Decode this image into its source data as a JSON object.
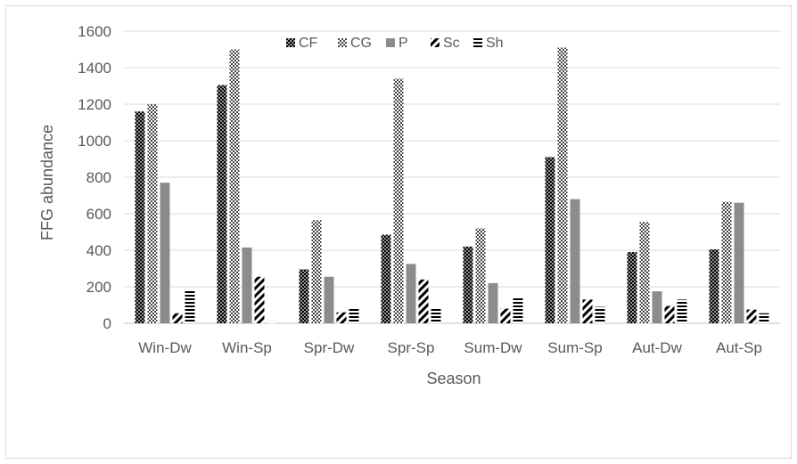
{
  "chart_data": {
    "type": "bar",
    "title": "",
    "xlabel": "Season",
    "ylabel": "FFG abundance",
    "ylim": [
      0,
      1600
    ],
    "yticks": [
      0,
      200,
      400,
      600,
      800,
      1000,
      1200,
      1400,
      1600
    ],
    "grid": true,
    "legend_position": "top-center",
    "categories": [
      "Win-Dw",
      "Win-Sp",
      "Spr-Dw",
      "Spr-Sp",
      "Sum-Dw",
      "Sum-Sp",
      "Aut-Dw",
      "Aut-Sp"
    ],
    "series": [
      {
        "name": "CF",
        "pattern": "dots-dark",
        "values": [
          1160,
          1305,
          295,
          485,
          420,
          910,
          390,
          405
        ]
      },
      {
        "name": "CG",
        "pattern": "checker",
        "values": [
          1200,
          1500,
          565,
          1340,
          520,
          1510,
          555,
          665
        ]
      },
      {
        "name": "P",
        "pattern": "solid-gray",
        "values": [
          770,
          415,
          255,
          325,
          220,
          680,
          175,
          660
        ]
      },
      {
        "name": "Sc",
        "pattern": "diagonal",
        "values": [
          55,
          255,
          60,
          240,
          80,
          130,
          95,
          75
        ]
      },
      {
        "name": "Sh",
        "pattern": "horizontal",
        "values": [
          180,
          10,
          80,
          80,
          140,
          90,
          130,
          55
        ]
      }
    ],
    "colors": {
      "gridline": "#d9d9d9",
      "axis_text": "#595959",
      "dark": "#000000",
      "gray": "#8c8c8c"
    }
  }
}
